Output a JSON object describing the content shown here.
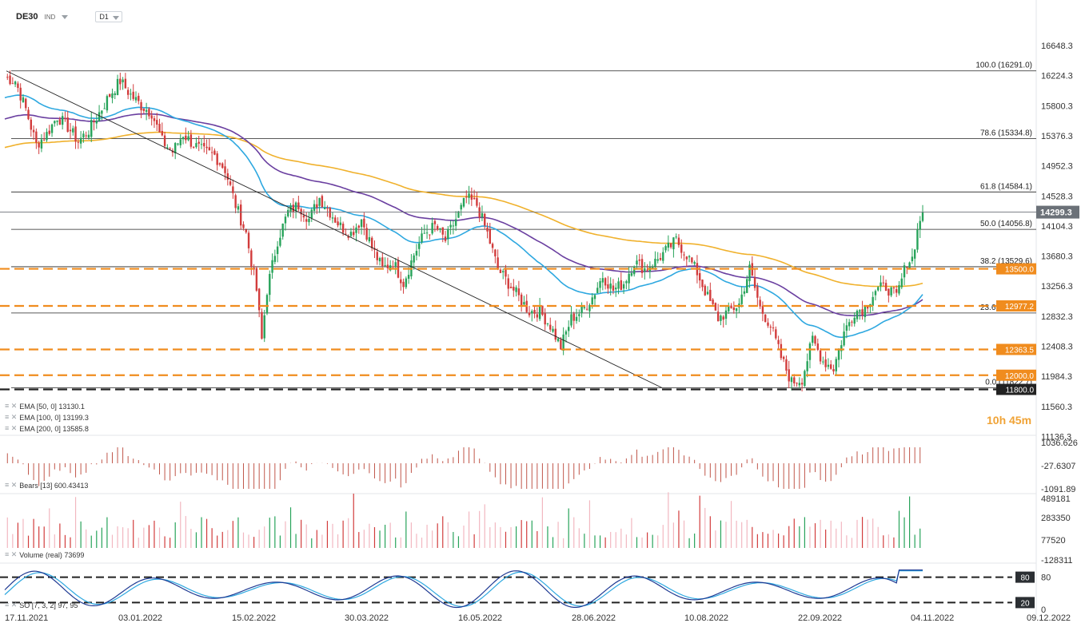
{
  "header": {
    "symbol": "DE30",
    "exchange": "IND",
    "timeframe": "D1"
  },
  "timer": "10h 45m",
  "price_axis": [
    "16648.3",
    "16224.3",
    "15800.3",
    "15376.3",
    "14952.3",
    "14528.3",
    "14104.3",
    "13680.3",
    "13256.3",
    "12832.3",
    "12408.3",
    "11984.3",
    "11560.3",
    "11136.3"
  ],
  "current_price": "14299.3",
  "fib_levels": [
    {
      "label": "100.0 (16291.0)",
      "price": 16291.0
    },
    {
      "label": "78.6 (15334.8)",
      "price": 15334.8
    },
    {
      "label": "61.8 (14584.1)",
      "price": 14584.1
    },
    {
      "label": "50.0 (14056.8)",
      "price": 14056.8
    },
    {
      "label": "38.2 (13529.6)",
      "price": 13529.6
    },
    {
      "label": "23.6 (12877.2)",
      "price": 12877.2
    },
    {
      "label": "0.0 (11822.7)",
      "price": 11822.7
    }
  ],
  "hlines": [
    {
      "label": "13500.0",
      "price": 13500.0,
      "color": "#f08c1e"
    },
    {
      "label": "12977.2",
      "price": 12977.2,
      "color": "#f08c1e"
    },
    {
      "label": "12363.5",
      "price": 12363.5,
      "color": "#f08c1e"
    },
    {
      "label": "12000.0",
      "price": 12000.0,
      "color": "#f08c1e"
    },
    {
      "label": "11800.0",
      "price": 11800.0,
      "color": "#222222"
    }
  ],
  "legends": {
    "ema50": "EMA [50, 0]  13130.1",
    "ema100": "EMA [100, 0]  13199.3",
    "ema200": "EMA [200, 0]  13585.8",
    "bears": "Bears [13]  600.43413",
    "volume": "Volume  (real)  73699",
    "so": "SO [7, 3, 2]  97, 95"
  },
  "bears_axis": [
    "1036.626",
    "-27.6307",
    "-1091.89"
  ],
  "volume_axis": [
    "489181",
    "283350",
    "77520",
    "-128311"
  ],
  "so_axis": [
    "80",
    "20",
    "0"
  ],
  "so_marks": [
    "80",
    "20"
  ],
  "date_axis": [
    "17.11.2021",
    "03.01.2022",
    "15.02.2022",
    "30.03.2022",
    "16.05.2022",
    "28.06.2022",
    "10.08.2022",
    "22.09.2022",
    "04.11.2022",
    "09.12.2022"
  ],
  "colors": {
    "up": "#27a35a",
    "down": "#d23c3c",
    "ema50": "#2ea8e0",
    "ema100": "#6a3fa0",
    "ema200": "#f0b12c",
    "fib": "#222222",
    "level": "#f08c1e"
  },
  "chart_data": {
    "type": "candlestick",
    "symbol": "DE30",
    "timeframe": "D1",
    "ylim": [
      11136.3,
      16900
    ],
    "close_path": [
      [
        0,
        16200
      ],
      [
        4,
        16150
      ],
      [
        8,
        15750
      ],
      [
        12,
        15250
      ],
      [
        16,
        15400
      ],
      [
        20,
        15650
      ],
      [
        24,
        15500
      ],
      [
        28,
        15300
      ],
      [
        32,
        15450
      ],
      [
        36,
        15700
      ],
      [
        40,
        15950
      ],
      [
        44,
        16150
      ],
      [
        48,
        15950
      ],
      [
        52,
        15800
      ],
      [
        56,
        15700
      ],
      [
        60,
        15300
      ],
      [
        64,
        15150
      ],
      [
        68,
        15400
      ],
      [
        72,
        15250
      ],
      [
        76,
        15150
      ],
      [
        80,
        15100
      ],
      [
        84,
        14900
      ],
      [
        88,
        14400
      ],
      [
        92,
        14000
      ],
      [
        96,
        13200
      ],
      [
        98,
        12500
      ],
      [
        100,
        13200
      ],
      [
        104,
        13900
      ],
      [
        108,
        14300
      ],
      [
        112,
        14400
      ],
      [
        116,
        14200
      ],
      [
        120,
        14500
      ],
      [
        124,
        14300
      ],
      [
        128,
        14100
      ],
      [
        132,
        14000
      ],
      [
        136,
        14200
      ],
      [
        140,
        13800
      ],
      [
        144,
        13500
      ],
      [
        148,
        13600
      ],
      [
        152,
        13300
      ],
      [
        156,
        13700
      ],
      [
        160,
        14000
      ],
      [
        164,
        14100
      ],
      [
        168,
        13900
      ],
      [
        172,
        14200
      ],
      [
        176,
        14500
      ],
      [
        180,
        14400
      ],
      [
        184,
        14000
      ],
      [
        188,
        13500
      ],
      [
        192,
        13300
      ],
      [
        196,
        13100
      ],
      [
        200,
        12900
      ],
      [
        204,
        12900
      ],
      [
        208,
        12700
      ],
      [
        212,
        12400
      ],
      [
        216,
        12800
      ],
      [
        220,
        12900
      ],
      [
        224,
        13100
      ],
      [
        228,
        13400
      ],
      [
        232,
        13200
      ],
      [
        236,
        13300
      ],
      [
        240,
        13600
      ],
      [
        244,
        13500
      ],
      [
        248,
        13600
      ],
      [
        252,
        13750
      ],
      [
        256,
        13900
      ],
      [
        260,
        13700
      ],
      [
        264,
        13450
      ],
      [
        268,
        13100
      ],
      [
        272,
        12800
      ],
      [
        276,
        12900
      ],
      [
        280,
        13000
      ],
      [
        284,
        13500
      ],
      [
        288,
        12950
      ],
      [
        292,
        12700
      ],
      [
        296,
        12250
      ],
      [
        300,
        11900
      ],
      [
        304,
        11950
      ],
      [
        308,
        12500
      ],
      [
        312,
        12200
      ],
      [
        316,
        12100
      ],
      [
        320,
        12600
      ],
      [
        324,
        12900
      ],
      [
        328,
        12950
      ],
      [
        332,
        13200
      ],
      [
        336,
        13250
      ],
      [
        340,
        13100
      ],
      [
        344,
        13600
      ],
      [
        346,
        13650
      ],
      [
        348,
        14050
      ],
      [
        350,
        14299.3
      ]
    ],
    "ema50_last": 13130.1,
    "ema100_last": 13199.3,
    "ema200_last": 13585.8
  }
}
